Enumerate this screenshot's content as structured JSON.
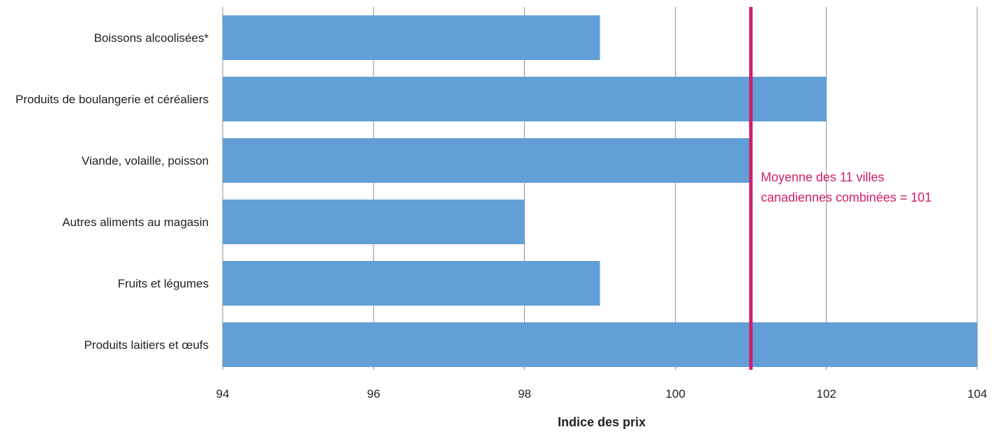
{
  "chart_data": {
    "type": "bar",
    "orientation": "horizontal",
    "categories": [
      "Boissons alcoolisées*",
      "Produits de boulangerie et céréaliers",
      "Viande, volaille, poisson",
      "Autres aliments au magasin",
      "Fruits et légumes",
      "Produits laitiers et œufs"
    ],
    "values": [
      99,
      102,
      101,
      98,
      99,
      104
    ],
    "xlabel": "Indice des prix",
    "ylabel": "",
    "title": "",
    "xlim": [
      94,
      104
    ],
    "xticks": [
      "94",
      "96",
      "98",
      "100",
      "102",
      "104"
    ],
    "grid": "vertical",
    "legend": "none",
    "reference_line": {
      "value": 101,
      "label_line1": "Moyenne des 11 villes",
      "label_line2": "canadiennes combinées = 101"
    },
    "colors": {
      "bar": "#629fd6",
      "reference": "#cf1f6b",
      "grid": "#8c8c8c",
      "text": "#222222"
    }
  }
}
